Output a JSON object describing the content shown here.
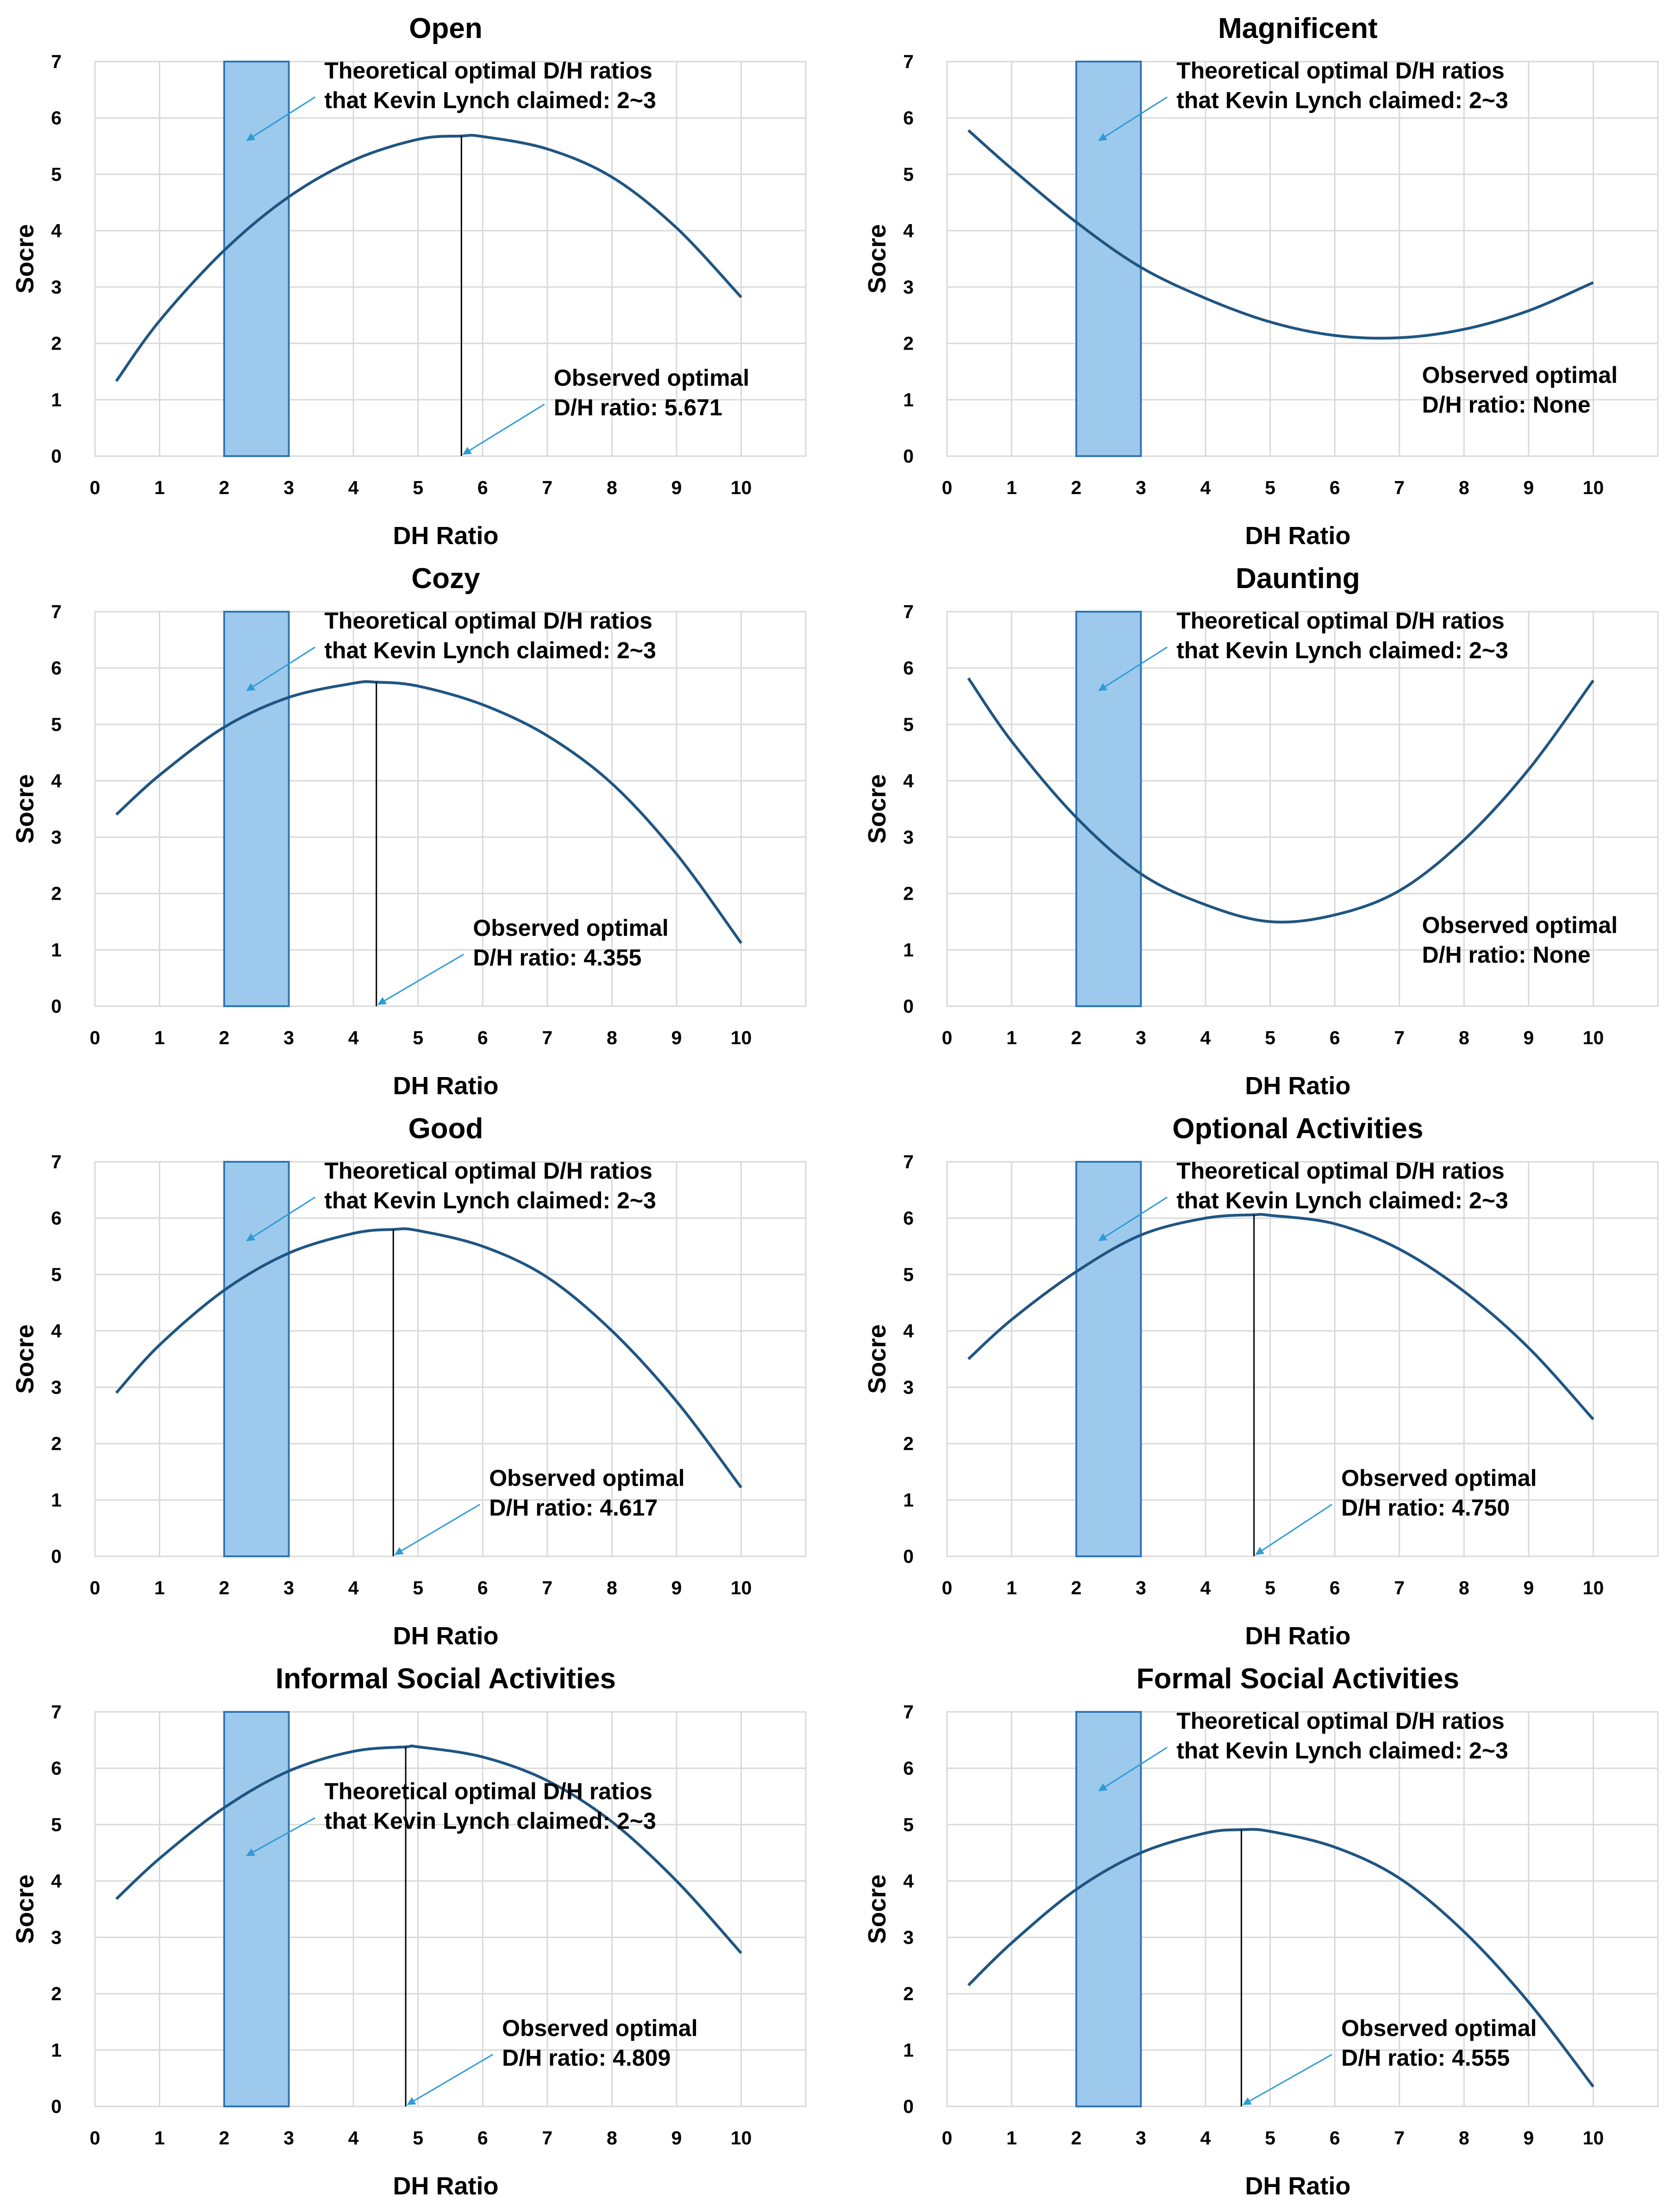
{
  "colors": {
    "curve": "#1f5582",
    "band_fill": "#9dc9ec",
    "band_stroke": "#2e75b6",
    "arrow": "#2e9bd6"
  },
  "chart_data": [
    {
      "type": "line",
      "title": "Open",
      "xlabel": "DH Ratio",
      "ylabel": "Socre",
      "xlim": [
        0,
        11
      ],
      "ylim": [
        0,
        7
      ],
      "xticks": [
        "0",
        "1",
        "2",
        "3",
        "4",
        "5",
        "6",
        "7",
        "8",
        "9",
        "10"
      ],
      "yticks": [
        "0",
        "1",
        "2",
        "3",
        "4",
        "5",
        "6",
        "7"
      ],
      "band": [
        2,
        3
      ],
      "theory_text": [
        "Theoretical optimal D/H ratios",
        "that Kevin Lynch claimed: 2~3"
      ],
      "observed_text": [
        "Observed optimal",
        "D/H ratio: 5.671"
      ],
      "optimum_x": 5.671,
      "series": [
        {
          "name": "Open",
          "x": [
            0.33,
            1,
            2,
            3,
            4,
            5,
            5.671,
            6,
            7,
            8,
            9,
            10
          ],
          "y": [
            1.33,
            2.4,
            3.65,
            4.6,
            5.25,
            5.62,
            5.68,
            5.67,
            5.45,
            4.95,
            4.05,
            2.82
          ]
        }
      ]
    },
    {
      "type": "line",
      "title": "Magnificent",
      "xlabel": "DH Ratio",
      "ylabel": "Socre",
      "xlim": [
        0,
        11
      ],
      "ylim": [
        0,
        7
      ],
      "xticks": [
        "0",
        "1",
        "2",
        "3",
        "4",
        "5",
        "6",
        "7",
        "8",
        "9",
        "10"
      ],
      "yticks": [
        "0",
        "1",
        "2",
        "3",
        "4",
        "5",
        "6",
        "7"
      ],
      "band": [
        2,
        3
      ],
      "theory_text": [
        "Theoretical optimal D/H ratios",
        "that Kevin Lynch claimed: 2~3"
      ],
      "observed_text": [
        "Observed optimal",
        "D/H ratio: None"
      ],
      "optimum_x": null,
      "series": [
        {
          "name": "Magnificent",
          "x": [
            0.33,
            1,
            2,
            3,
            4,
            5,
            6,
            7,
            8,
            9,
            10
          ],
          "y": [
            5.78,
            5.1,
            4.15,
            3.35,
            2.8,
            2.38,
            2.14,
            2.1,
            2.25,
            2.58,
            3.08
          ]
        }
      ]
    },
    {
      "type": "line",
      "title": "Cozy",
      "xlabel": "DH Ratio",
      "ylabel": "Socre",
      "xlim": [
        0,
        11
      ],
      "ylim": [
        0,
        7
      ],
      "xticks": [
        "0",
        "1",
        "2",
        "3",
        "4",
        "5",
        "6",
        "7",
        "8",
        "9",
        "10"
      ],
      "yticks": [
        "0",
        "1",
        "2",
        "3",
        "4",
        "5",
        "6",
        "7"
      ],
      "band": [
        2,
        3
      ],
      "theory_text": [
        "Theoretical optimal D/H ratios",
        "that Kevin Lynch claimed: 2~3"
      ],
      "observed_text": [
        "Observed optimal",
        "D/H ratio: 4.355"
      ],
      "optimum_x": 4.355,
      "series": [
        {
          "name": "Cozy",
          "x": [
            0.33,
            1,
            2,
            3,
            4,
            4.355,
            5,
            6,
            7,
            8,
            9,
            10
          ],
          "y": [
            3.4,
            4.1,
            4.95,
            5.48,
            5.73,
            5.75,
            5.68,
            5.35,
            4.8,
            3.95,
            2.7,
            1.12
          ]
        }
      ]
    },
    {
      "type": "line",
      "title": "Daunting",
      "xlabel": "DH Ratio",
      "ylabel": "Socre",
      "xlim": [
        0,
        11
      ],
      "ylim": [
        0,
        7
      ],
      "xticks": [
        "0",
        "1",
        "2",
        "3",
        "4",
        "5",
        "6",
        "7",
        "8",
        "9",
        "10"
      ],
      "yticks": [
        "0",
        "1",
        "2",
        "3",
        "4",
        "5",
        "6",
        "7"
      ],
      "band": [
        2,
        3
      ],
      "theory_text": [
        "Theoretical optimal D/H ratios",
        "that Kevin Lynch claimed: 2~3"
      ],
      "observed_text": [
        "Observed optimal",
        "D/H ratio: None"
      ],
      "optimum_x": null,
      "series": [
        {
          "name": "Daunting",
          "x": [
            0.33,
            1,
            2,
            3,
            4,
            5,
            6,
            7,
            8,
            9,
            10
          ],
          "y": [
            5.82,
            4.7,
            3.35,
            2.35,
            1.8,
            1.5,
            1.62,
            2.05,
            2.95,
            4.2,
            5.78
          ]
        }
      ]
    },
    {
      "type": "line",
      "title": "Good",
      "xlabel": "DH Ratio",
      "ylabel": "Socre",
      "xlim": [
        0,
        11
      ],
      "ylim": [
        0,
        7
      ],
      "xticks": [
        "0",
        "1",
        "2",
        "3",
        "4",
        "5",
        "6",
        "7",
        "8",
        "9",
        "10"
      ],
      "yticks": [
        "0",
        "1",
        "2",
        "3",
        "4",
        "5",
        "6",
        "7"
      ],
      "band": [
        2,
        3
      ],
      "theory_text": [
        "Theoretical optimal D/H ratios",
        "that Kevin Lynch claimed: 2~3"
      ],
      "observed_text": [
        "Observed optimal",
        "D/H ratio: 4.617"
      ],
      "optimum_x": 4.617,
      "series": [
        {
          "name": "Good",
          "x": [
            0.33,
            1,
            2,
            3,
            4,
            4.617,
            5,
            6,
            7,
            8,
            9,
            10
          ],
          "y": [
            2.9,
            3.75,
            4.72,
            5.38,
            5.73,
            5.8,
            5.78,
            5.5,
            4.95,
            4.0,
            2.75,
            1.22
          ]
        }
      ]
    },
    {
      "type": "line",
      "title": "Optional Activities",
      "xlabel": "DH Ratio",
      "ylabel": "Socre",
      "xlim": [
        0,
        11
      ],
      "ylim": [
        0,
        7
      ],
      "xticks": [
        "0",
        "1",
        "2",
        "3",
        "4",
        "5",
        "6",
        "7",
        "8",
        "9",
        "10"
      ],
      "yticks": [
        "0",
        "1",
        "2",
        "3",
        "4",
        "5",
        "6",
        "7"
      ],
      "band": [
        2,
        3
      ],
      "theory_text": [
        "Theoretical optimal D/H ratios",
        "that Kevin Lynch claimed: 2~3"
      ],
      "observed_text": [
        "Observed optimal",
        "D/H ratio: 4.750"
      ],
      "optimum_x": 4.75,
      "series": [
        {
          "name": "Optional Activities",
          "x": [
            0.33,
            1,
            2,
            3,
            4,
            4.75,
            5,
            6,
            7,
            8,
            9,
            10
          ],
          "y": [
            3.5,
            4.2,
            5.05,
            5.7,
            6.0,
            6.06,
            6.05,
            5.9,
            5.45,
            4.7,
            3.7,
            2.43
          ]
        }
      ]
    },
    {
      "type": "line",
      "title": "Informal Social Activities",
      "xlabel": "DH Ratio",
      "ylabel": "Socre",
      "xlim": [
        0,
        11
      ],
      "ylim": [
        0,
        7
      ],
      "xticks": [
        "0",
        "1",
        "2",
        "3",
        "4",
        "5",
        "6",
        "7",
        "8",
        "9",
        "10"
      ],
      "yticks": [
        "0",
        "1",
        "2",
        "3",
        "4",
        "5",
        "6",
        "7"
      ],
      "band": [
        2,
        3
      ],
      "theory_text": [
        "Theoretical optimal D/H ratios",
        "that Kevin Lynch claimed: 2~3"
      ],
      "observed_text": [
        "Observed optimal",
        "D/H ratio: 4.809"
      ],
      "optimum_x": 4.809,
      "series": [
        {
          "name": "Informal Social Activities",
          "x": [
            0.33,
            1,
            2,
            3,
            4,
            4.809,
            5,
            6,
            7,
            8,
            9,
            10
          ],
          "y": [
            3.68,
            4.4,
            5.3,
            5.95,
            6.3,
            6.38,
            6.38,
            6.2,
            5.78,
            5.05,
            4.0,
            2.72
          ]
        }
      ]
    },
    {
      "type": "line",
      "title": "Formal Social Activities",
      "xlabel": "DH Ratio",
      "ylabel": "Socre",
      "xlim": [
        0,
        11
      ],
      "ylim": [
        0,
        7
      ],
      "xticks": [
        "0",
        "1",
        "2",
        "3",
        "4",
        "5",
        "6",
        "7",
        "8",
        "9",
        "10"
      ],
      "yticks": [
        "0",
        "1",
        "2",
        "3",
        "4",
        "5",
        "6",
        "7"
      ],
      "band": [
        2,
        3
      ],
      "theory_text": [
        "Theoretical optimal D/H ratios",
        "that Kevin Lynch claimed: 2~3"
      ],
      "observed_text": [
        "Observed optimal",
        "D/H ratio: 4.555"
      ],
      "optimum_x": 4.555,
      "series": [
        {
          "name": "Formal Social Activities",
          "x": [
            0.33,
            1,
            2,
            3,
            4,
            4.555,
            5,
            6,
            7,
            8,
            9,
            10
          ],
          "y": [
            2.15,
            2.9,
            3.85,
            4.5,
            4.85,
            4.91,
            4.88,
            4.6,
            4.05,
            3.1,
            1.85,
            0.35
          ]
        }
      ]
    }
  ]
}
